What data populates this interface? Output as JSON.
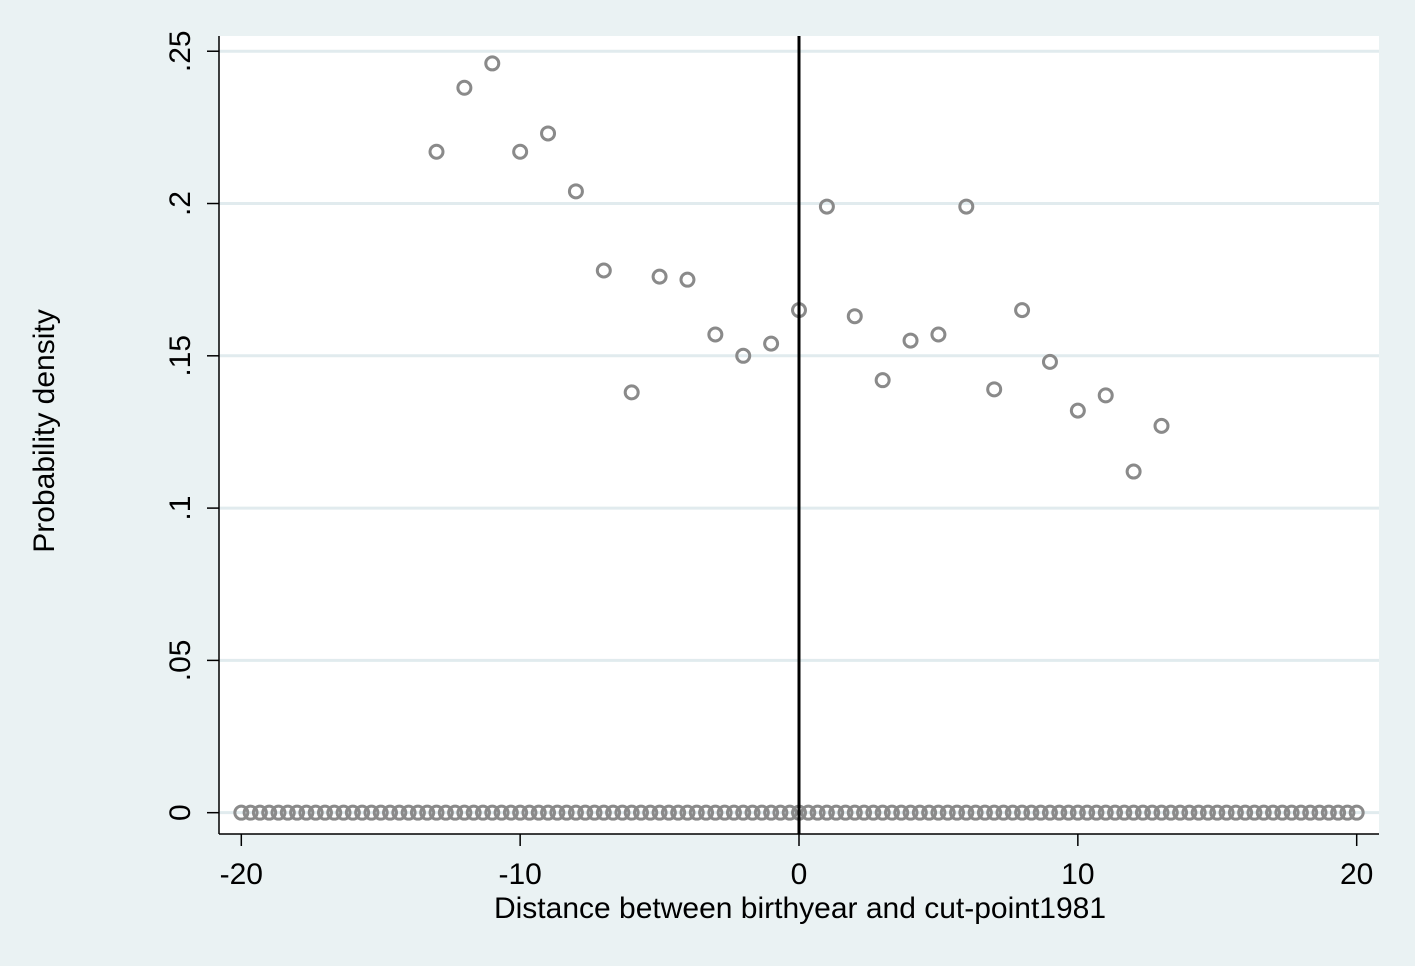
{
  "chart_data": {
    "type": "scatter",
    "title": "",
    "xlabel": "Distance between birthyear and cut-point1981",
    "ylabel": "Probability density",
    "xlim": [
      -20.8,
      20.8
    ],
    "ylim": [
      -0.007,
      0.255
    ],
    "xticks": [
      {
        "value": -20,
        "label": "-20"
      },
      {
        "value": -10,
        "label": "-10"
      },
      {
        "value": 0,
        "label": "0"
      },
      {
        "value": 10,
        "label": "10"
      },
      {
        "value": 20,
        "label": "20"
      }
    ],
    "yticks": [
      {
        "value": 0,
        "label": "0"
      },
      {
        "value": 0.05,
        "label": ".05"
      },
      {
        "value": 0.1,
        "label": ".1"
      },
      {
        "value": 0.15,
        "label": ".15"
      },
      {
        "value": 0.2,
        "label": ".2"
      },
      {
        "value": 0.25,
        "label": ".25"
      }
    ],
    "grid": true,
    "reference_line": {
      "axis": "x",
      "value": 0
    },
    "colors": {
      "marker": "#8a8a8a",
      "background": "#eaf2f3",
      "plot_area": "#ffffff",
      "grid": "#e1ebee",
      "reference_line": "#000000"
    },
    "marker": "hollow-circle",
    "series": [
      {
        "points": [
          {
            "x": -13,
            "y": 0.217
          },
          {
            "x": -12,
            "y": 0.238
          },
          {
            "x": -11,
            "y": 0.246
          },
          {
            "x": -10,
            "y": 0.217
          },
          {
            "x": -9,
            "y": 0.223
          },
          {
            "x": -8,
            "y": 0.204
          },
          {
            "x": -7,
            "y": 0.178
          },
          {
            "x": -6,
            "y": 0.138
          },
          {
            "x": -5,
            "y": 0.176
          },
          {
            "x": -4,
            "y": 0.175
          },
          {
            "x": -3,
            "y": 0.157
          },
          {
            "x": -2,
            "y": 0.15
          },
          {
            "x": -1,
            "y": 0.154
          },
          {
            "x": 0,
            "y": 0.165
          },
          {
            "x": 1,
            "y": 0.199
          },
          {
            "x": 2,
            "y": 0.163
          },
          {
            "x": 3,
            "y": 0.142
          },
          {
            "x": 4,
            "y": 0.155
          },
          {
            "x": 5,
            "y": 0.157
          },
          {
            "x": 6,
            "y": 0.199
          },
          {
            "x": 7,
            "y": 0.139
          },
          {
            "x": 8,
            "y": 0.165
          },
          {
            "x": 9,
            "y": 0.148
          },
          {
            "x": 10,
            "y": 0.132
          },
          {
            "x": 11,
            "y": 0.137
          },
          {
            "x": 12,
            "y": 0.112
          },
          {
            "x": 13,
            "y": 0.127
          }
        ]
      },
      {
        "points": "zero-density points at every 1/3 year from -20 to 20 (y = 0)",
        "x_start": -20,
        "x_end": 20,
        "x_step": 0.3333,
        "y": 0
      }
    ]
  }
}
